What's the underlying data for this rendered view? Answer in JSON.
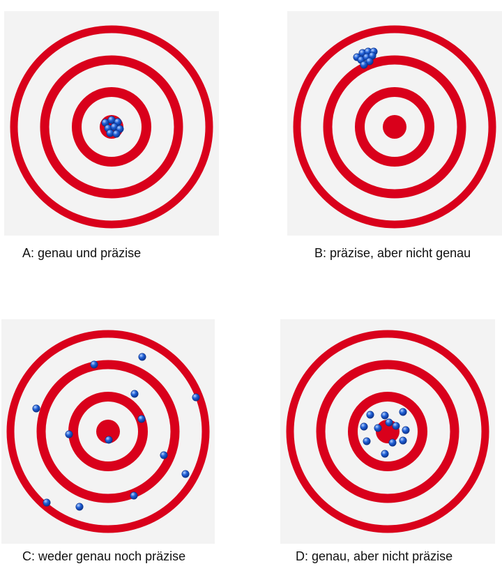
{
  "colors": {
    "ring": "#d9001b",
    "background": "#f3f3f3",
    "shot_fill": "#1f5fd6",
    "shot_highlight": "#b9d4ff",
    "shot_shadow": "#0a2f86"
  },
  "targets": [
    {
      "id": "A",
      "caption": "A: genau und präzise"
    },
    {
      "id": "B",
      "caption": "B: präzise, aber nicht genau"
    },
    {
      "id": "C",
      "caption": "C: weder genau noch präzise"
    },
    {
      "id": "D",
      "caption": "D: genau, aber nicht präzise"
    }
  ]
}
